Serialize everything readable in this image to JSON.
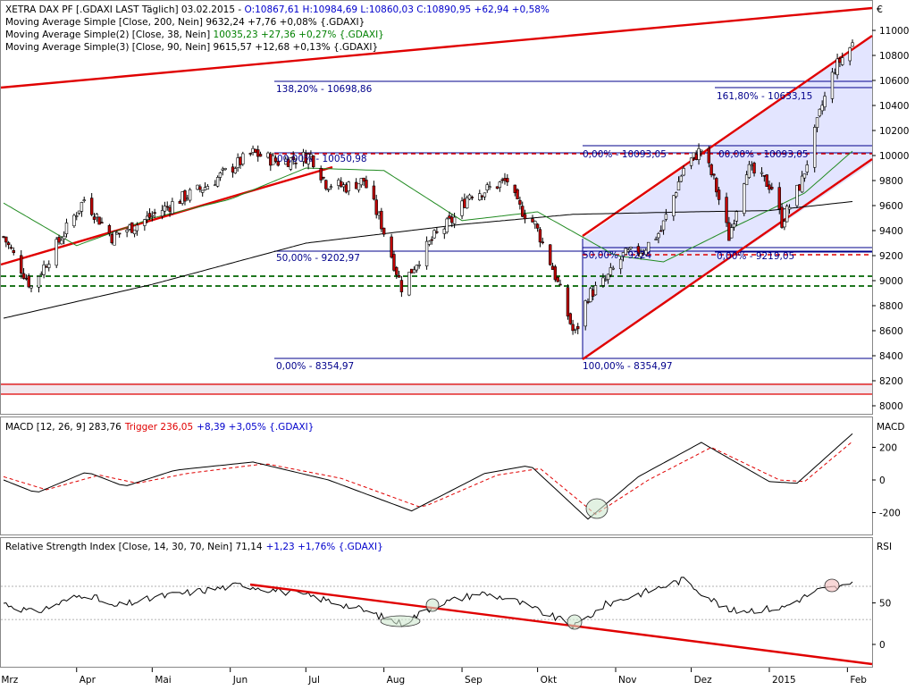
{
  "currency_symbol": "€",
  "colors": {
    "price_up": "#ffffff",
    "price_down": "#c00000",
    "ma200": "#000000",
    "ma38": "#228b22",
    "ma90": "#000000",
    "trend_red": "#e00000",
    "fib_blue": "#00008b",
    "channel_fill": "#e3e5ff",
    "macd_trigger": "#e00000",
    "support_green": "#006400",
    "text_blue": "#0000cc",
    "text_green": "#008000"
  },
  "legend_lines": [
    {
      "prefix": "XETRA DAX PF [.GDAXI LAST Täglich] 03.02.2015 - ",
      "value": "O:10867,61 H:10984,69 L:10860,03 C:10890,95 +62,94 +0,58%",
      "value_color": "#0000cc"
    },
    {
      "prefix": "Moving Average Simple [Close, 200, Nein] ",
      "value": "9632,24 +7,76 +0,08% {.GDAXI}",
      "value_color": "#000000"
    },
    {
      "prefix": "Moving Average Simple(2) [Close, 38, Nein] ",
      "value": "10035,23 +27,36 +0,27% {.GDAXI}",
      "value_color": "#008000"
    },
    {
      "prefix": "Moving Average Simple(3) [Close, 90, Nein] ",
      "value": "9615,57 +12,68 +0,13% {.GDAXI}",
      "value_color": "#000000"
    }
  ],
  "macd_legend": {
    "prefix": "MACD [12, 26, 9] ",
    "value": "283,76",
    "trigger": "Trigger 236,05",
    "change": "+8,39 +3,05% {.GDAXI}",
    "panel_label": "MACD"
  },
  "rsi_legend": {
    "prefix": "Relative Strength Index [Close, 14, 30, 70, Nein] ",
    "value": "71,14",
    "change": "+1,23 +1,76% {.GDAXI}",
    "panel_label": "RSI"
  },
  "x_labels": [
    "Mrz",
    "Apr",
    "Mai",
    "Jun",
    "Jul",
    "Aug",
    "Sep",
    "Okt",
    "Nov",
    "Dez",
    "2015",
    "Feb"
  ],
  "fib_labels": [
    {
      "text": "138,20% - 10698,86",
      "value": 10698.86
    },
    {
      "text": "00,00% - 10050,98",
      "value": 10050.98
    },
    {
      "text": "50,00% - 9202,97",
      "value": 9202.97
    },
    {
      "text": "0,00% - 8354,97",
      "value": 8354.97
    },
    {
      "text": "0,00% - 10093,05",
      "value": 10093.05
    },
    {
      "text": "50,00% - 9224",
      "value": 9224
    },
    {
      "text": "100,00% - 8354,97",
      "value": 8354.97
    },
    {
      "text": "161,80% - 10633,15",
      "value": 10633.15
    },
    {
      "text": "00,00% - 10093,05",
      "value": 10093.05
    },
    {
      "text": "0,00% - 9219,05",
      "value": 9219.05
    }
  ],
  "chart_data": {
    "type": "candlestick",
    "title": "XETRA DAX PF [.GDAXI LAST Täglich]",
    "ylim": [
      7950,
      11450
    ],
    "y_ticks": [
      8000,
      8200,
      8400,
      8600,
      8800,
      9000,
      9200,
      9400,
      9600,
      9800,
      10000,
      10200,
      10400,
      10600,
      10800,
      11000
    ],
    "y_tick_labels": [
      "8000",
      "8200",
      "8400",
      "8600",
      "8800",
      "9000",
      "9200",
      "9400",
      "9600",
      "9800",
      "10000",
      "10200",
      "10400",
      "10600",
      "10800",
      "11000"
    ],
    "close_anchors": [
      {
        "d": "2014-03-03",
        "v": 9350
      },
      {
        "d": "2014-03-14",
        "v": 8950
      },
      {
        "d": "2014-03-24",
        "v": 9280
      },
      {
        "d": "2014-04-04",
        "v": 9650
      },
      {
        "d": "2014-04-15",
        "v": 9350
      },
      {
        "d": "2014-04-25",
        "v": 9450
      },
      {
        "d": "2014-05-12",
        "v": 9650
      },
      {
        "d": "2014-05-22",
        "v": 9750
      },
      {
        "d": "2014-06-05",
        "v": 9950
      },
      {
        "d": "2014-06-10",
        "v": 10020
      },
      {
        "d": "2014-06-20",
        "v": 9950
      },
      {
        "d": "2014-07-03",
        "v": 10000
      },
      {
        "d": "2014-07-09",
        "v": 9780
      },
      {
        "d": "2014-07-17",
        "v": 9750
      },
      {
        "d": "2014-07-24",
        "v": 9800
      },
      {
        "d": "2014-07-31",
        "v": 9450
      },
      {
        "d": "2014-08-08",
        "v": 8950
      },
      {
        "d": "2014-08-14",
        "v": 9150
      },
      {
        "d": "2014-08-21",
        "v": 9350
      },
      {
        "d": "2014-08-29",
        "v": 9500
      },
      {
        "d": "2014-09-04",
        "v": 9700
      },
      {
        "d": "2014-09-10",
        "v": 9720
      },
      {
        "d": "2014-09-19",
        "v": 9800
      },
      {
        "d": "2014-09-23",
        "v": 9600
      },
      {
        "d": "2014-09-30",
        "v": 9450
      },
      {
        "d": "2014-10-07",
        "v": 9100
      },
      {
        "d": "2014-10-15",
        "v": 8600
      },
      {
        "d": "2014-10-16",
        "v": 8580
      },
      {
        "d": "2014-10-21",
        "v": 8880
      },
      {
        "d": "2014-10-28",
        "v": 9000
      },
      {
        "d": "2014-11-04",
        "v": 9200
      },
      {
        "d": "2014-11-12",
        "v": 9250
      },
      {
        "d": "2014-11-19",
        "v": 9400
      },
      {
        "d": "2014-11-28",
        "v": 9900
      },
      {
        "d": "2014-12-05",
        "v": 10050
      },
      {
        "d": "2014-12-10",
        "v": 9800
      },
      {
        "d": "2014-12-16",
        "v": 9350
      },
      {
        "d": "2014-12-23",
        "v": 9900
      },
      {
        "d": "2015-01-02",
        "v": 9750
      },
      {
        "d": "2015-01-06",
        "v": 9470
      },
      {
        "d": "2015-01-14",
        "v": 9800
      },
      {
        "d": "2015-01-22",
        "v": 10400
      },
      {
        "d": "2015-01-27",
        "v": 10700
      },
      {
        "d": "2015-02-03",
        "v": 10890.95
      }
    ],
    "ma200_anchors": [
      {
        "d": "2014-03-03",
        "v": 8700
      },
      {
        "d": "2014-05-01",
        "v": 8970
      },
      {
        "d": "2014-07-01",
        "v": 9300
      },
      {
        "d": "2014-09-01",
        "v": 9450
      },
      {
        "d": "2014-10-15",
        "v": 9530
      },
      {
        "d": "2014-12-01",
        "v": 9550
      },
      {
        "d": "2015-01-01",
        "v": 9560
      },
      {
        "d": "2015-02-03",
        "v": 9632.24
      }
    ],
    "ma38_anchors": [
      {
        "d": "2014-03-03",
        "v": 9620
      },
      {
        "d": "2014-04-01",
        "v": 9280
      },
      {
        "d": "2014-05-01",
        "v": 9500
      },
      {
        "d": "2014-06-01",
        "v": 9650
      },
      {
        "d": "2014-07-01",
        "v": 9900
      },
      {
        "d": "2014-08-01",
        "v": 9880
      },
      {
        "d": "2014-09-01",
        "v": 9480
      },
      {
        "d": "2014-10-01",
        "v": 9550
      },
      {
        "d": "2014-11-01",
        "v": 9200
      },
      {
        "d": "2014-11-20",
        "v": 9150
      },
      {
        "d": "2014-12-15",
        "v": 9400
      },
      {
        "d": "2015-01-15",
        "v": 9700
      },
      {
        "d": "2015-02-03",
        "v": 10035.23
      }
    ],
    "macd": {
      "ylim": [
        -320,
        330
      ],
      "y_ticks": [
        -200,
        0,
        200
      ],
      "y_tick_labels": [
        "-200",
        "0",
        "200"
      ],
      "macd_anchors": [
        {
          "d": "2014-03-03",
          "v": 0
        },
        {
          "d": "2014-03-16",
          "v": -80
        },
        {
          "d": "2014-04-05",
          "v": 50
        },
        {
          "d": "2014-04-20",
          "v": -40
        },
        {
          "d": "2014-05-10",
          "v": 60
        },
        {
          "d": "2014-06-10",
          "v": 110
        },
        {
          "d": "2014-07-10",
          "v": 0
        },
        {
          "d": "2014-08-12",
          "v": -190
        },
        {
          "d": "2014-09-10",
          "v": 40
        },
        {
          "d": "2014-09-28",
          "v": 90
        },
        {
          "d": "2014-10-21",
          "v": -240
        },
        {
          "d": "2014-11-10",
          "v": 20
        },
        {
          "d": "2014-12-05",
          "v": 230
        },
        {
          "d": "2015-01-01",
          "v": -10
        },
        {
          "d": "2015-01-12",
          "v": -20
        },
        {
          "d": "2015-02-03",
          "v": 283.76
        }
      ],
      "trigger_anchors": [
        {
          "d": "2014-03-03",
          "v": 20
        },
        {
          "d": "2014-03-20",
          "v": -60
        },
        {
          "d": "2014-04-10",
          "v": 30
        },
        {
          "d": "2014-04-25",
          "v": -20
        },
        {
          "d": "2014-05-15",
          "v": 40
        },
        {
          "d": "2014-06-15",
          "v": 100
        },
        {
          "d": "2014-07-15",
          "v": 10
        },
        {
          "d": "2014-08-16",
          "v": -170
        },
        {
          "d": "2014-09-15",
          "v": 30
        },
        {
          "d": "2014-10-02",
          "v": 70
        },
        {
          "d": "2014-10-24",
          "v": -210
        },
        {
          "d": "2014-11-14",
          "v": 0
        },
        {
          "d": "2014-12-09",
          "v": 200
        },
        {
          "d": "2015-01-05",
          "v": 0
        },
        {
          "d": "2015-01-15",
          "v": -10
        },
        {
          "d": "2015-02-03",
          "v": 236.05
        }
      ]
    },
    "rsi": {
      "ylim": [
        -15,
        105
      ],
      "y_ticks": [
        0,
        50
      ],
      "y_tick_labels": [
        "0",
        "50"
      ],
      "levels": [
        30,
        70
      ],
      "rsi_anchors": [
        {
          "d": "2014-03-03",
          "v": 50
        },
        {
          "d": "2014-03-15",
          "v": 38
        },
        {
          "d": "2014-04-05",
          "v": 62
        },
        {
          "d": "2014-04-15",
          "v": 45
        },
        {
          "d": "2014-05-05",
          "v": 58
        },
        {
          "d": "2014-06-06",
          "v": 72
        },
        {
          "d": "2014-07-03",
          "v": 58
        },
        {
          "d": "2014-07-20",
          "v": 45
        },
        {
          "d": "2014-08-08",
          "v": 25
        },
        {
          "d": "2014-08-22",
          "v": 48
        },
        {
          "d": "2014-09-08",
          "v": 62
        },
        {
          "d": "2014-09-20",
          "v": 55
        },
        {
          "d": "2014-10-16",
          "v": 22
        },
        {
          "d": "2014-10-28",
          "v": 48
        },
        {
          "d": "2014-11-28",
          "v": 78
        },
        {
          "d": "2014-12-16",
          "v": 40
        },
        {
          "d": "2015-01-06",
          "v": 44
        },
        {
          "d": "2015-01-20",
          "v": 65
        },
        {
          "d": "2015-02-03",
          "v": 71.14
        }
      ]
    }
  }
}
